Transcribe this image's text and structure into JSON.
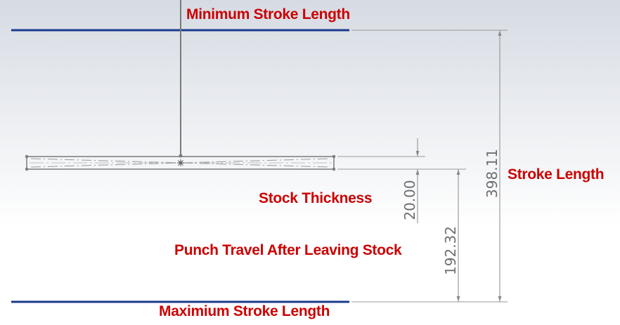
{
  "labels": {
    "minimum_stroke_length": "Minimum Stroke Length",
    "maximum_stroke_length": "Maximium Stroke Length",
    "stroke_length": "Stroke Length",
    "stock_thickness": "Stock Thickness",
    "punch_travel": "Punch Travel After Leaving Stock"
  },
  "dimensions": {
    "stroke_length": "398.11",
    "stock_thickness": "20.00",
    "punch_travel": "192.32"
  },
  "colors": {
    "label": "#cc0000",
    "stroke_limit_line": "#1a3a8c",
    "sketch_line": "#7a7a7a",
    "dimension_text": "#6f6f6f"
  }
}
